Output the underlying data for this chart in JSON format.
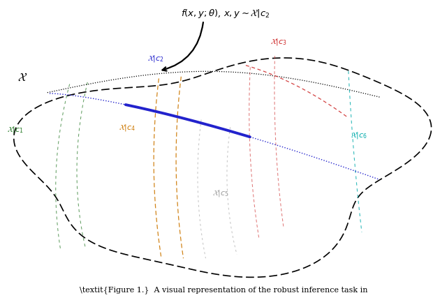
{
  "label_X": "$\\mathcal{X}$",
  "label_c1": "$\\mathcal{X}|c_1$",
  "label_c2": "$\\mathcal{X}|c_2$",
  "label_c3": "$\\mathcal{X}|c_3$",
  "label_c4": "$\\mathcal{X}|c_4$",
  "label_c5": "$\\mathcal{X}|c_5$",
  "label_c6": "$\\mathcal{X}|c_6$",
  "annotation": "$f(x, y; \\theta)$, $x, y \\sim \\mathcal{X}|c_2$",
  "caption": "Figure 1.  A visual representation of the robust inference task in",
  "color_blue": "#2222cc",
  "color_red": "#cc2222",
  "color_green": "#227722",
  "color_orange": "#cc7700",
  "color_cyan": "#00aaaa",
  "color_gray": "#999999",
  "bg_color": "#ffffff"
}
